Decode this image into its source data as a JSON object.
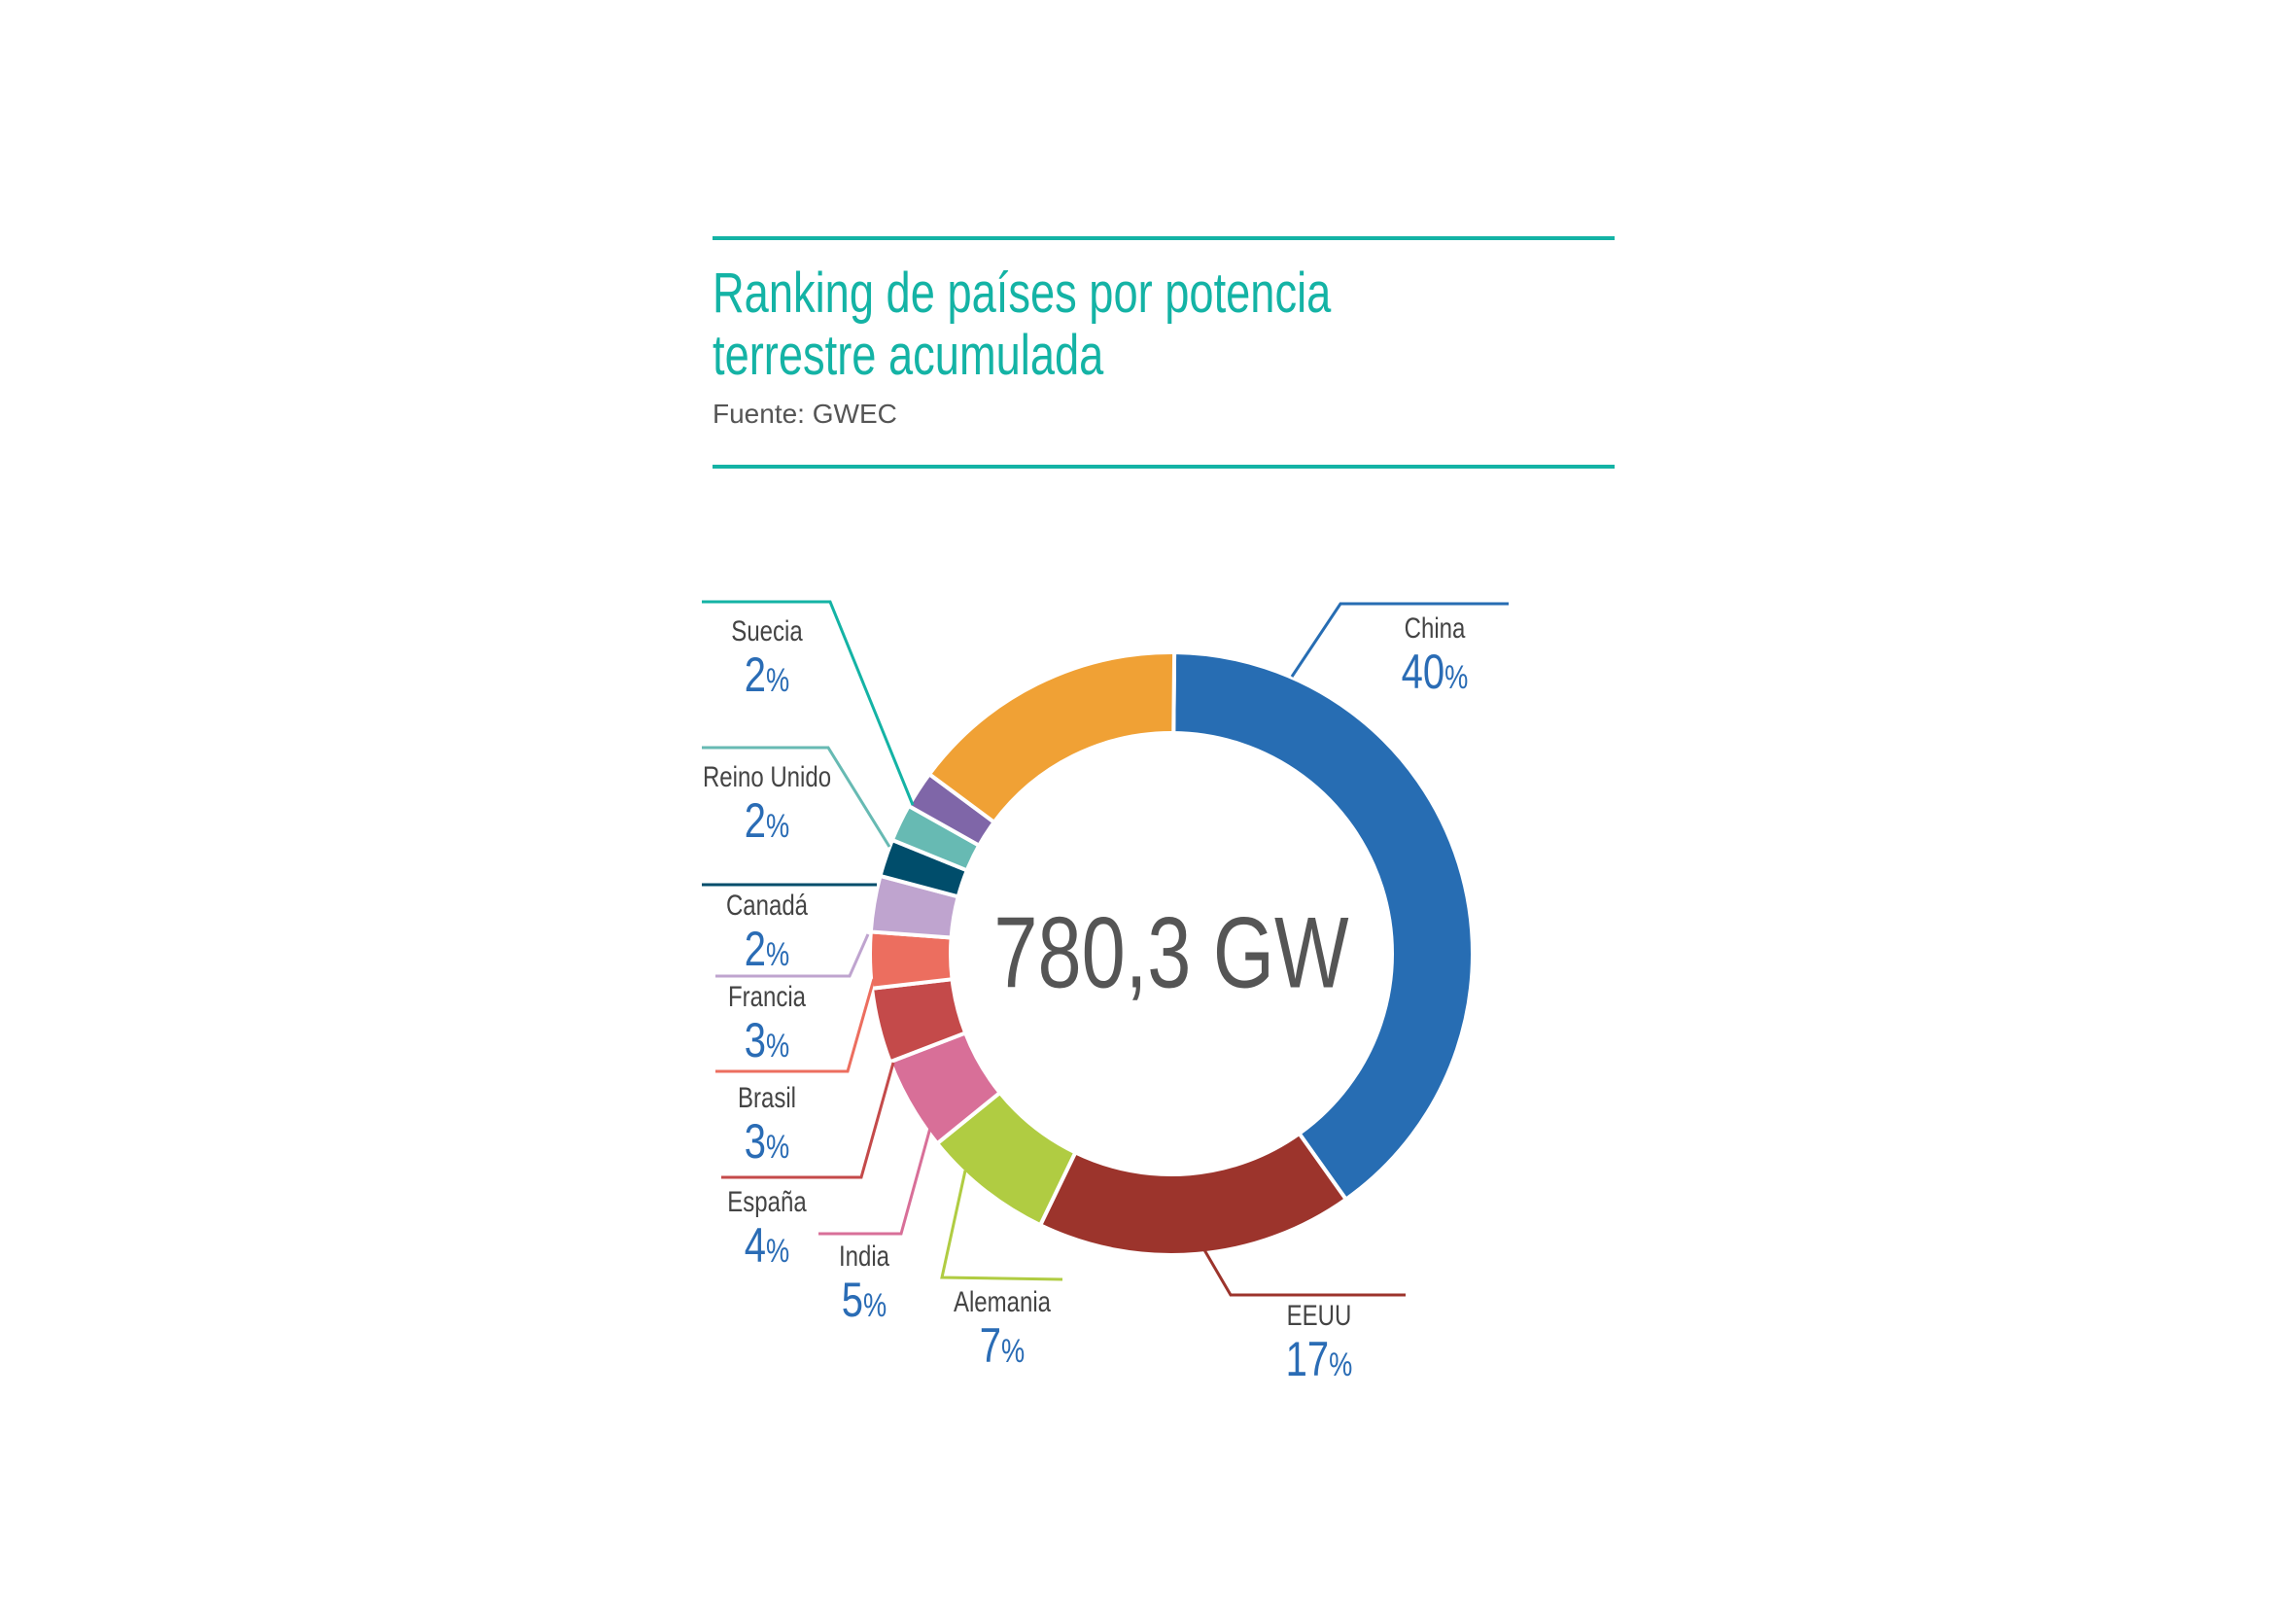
{
  "header": {
    "title_line1": "Ranking de países por potencia",
    "title_line2": "terrestre acumulada",
    "source": "Fuente: GWEC"
  },
  "chart_data": {
    "type": "pie",
    "variant": "donut",
    "center_label": "780,3 GW",
    "slices": [
      {
        "label": "China",
        "value": 40,
        "pct_text": "40",
        "color": "#276db3"
      },
      {
        "label": "EEUU",
        "value": 17,
        "pct_text": "17",
        "color": "#9c342c"
      },
      {
        "label": "Alemania",
        "value": 7,
        "pct_text": "7",
        "color": "#b0cc42"
      },
      {
        "label": "India",
        "value": 5,
        "pct_text": "5",
        "color": "#d86f98"
      },
      {
        "label": "España",
        "value": 4,
        "pct_text": "4",
        "color": "#c44a4a"
      },
      {
        "label": "Brasil",
        "value": 3,
        "pct_text": "3",
        "color": "#ec6e5f"
      },
      {
        "label": "Francia",
        "value": 3,
        "pct_text": "3",
        "color": "#bfa4cf"
      },
      {
        "label": "Canadá",
        "value": 2,
        "pct_text": "2",
        "color": "#004d6b"
      },
      {
        "label": "Reino Unido",
        "value": 2,
        "pct_text": "2",
        "color": "#67bab3"
      },
      {
        "label": "Suecia",
        "value": 2,
        "pct_text": "2",
        "color": "#7f66a8"
      },
      {
        "label": "",
        "value": 15,
        "pct_text": "",
        "color": "#f0a135"
      }
    ],
    "percent_sign": "%",
    "leader_colors": {
      "Suecia": "#14b3a5"
    }
  }
}
